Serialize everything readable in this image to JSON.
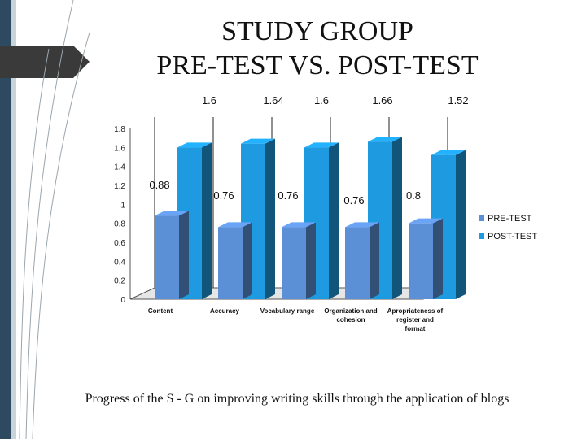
{
  "slide": {
    "title_line1": "STUDY GROUP",
    "title_line2": "PRE-TEST VS. POST-TEST",
    "caption": "Progress of the S - G on improving writing skills  through the application of blogs"
  },
  "chart_data": {
    "type": "bar",
    "title": "",
    "categories": [
      "Content",
      "Accuracy",
      "Vocabulary range",
      "Organization and cohesion",
      "Apropriateness of register and format"
    ],
    "category_lines": [
      [
        "Content"
      ],
      [
        "Accuracy"
      ],
      [
        "Vocabulary range"
      ],
      [
        "Organization and",
        "cohesion"
      ],
      [
        "Apropriateness of",
        "register and",
        "format"
      ]
    ],
    "series": [
      {
        "name": "PRE-TEST",
        "values": [
          0.88,
          0.76,
          0.76,
          0.76,
          0.8
        ],
        "labels": [
          "0.88",
          "0.76",
          "0.76",
          "0.76",
          "0.8"
        ],
        "color": "#5b8fd6"
      },
      {
        "name": "POST-TEST",
        "values": [
          1.6,
          1.64,
          1.6,
          1.66,
          1.52
        ],
        "labels": [
          "1.6",
          "1.64",
          "1.6",
          "1.66",
          "1.52"
        ],
        "color": "#1e9be0"
      }
    ],
    "y_ticks": [
      "0",
      "0.2",
      "0.4",
      "0.6",
      "0.8",
      "1",
      "1.2",
      "1.4",
      "1.6",
      "1.8"
    ],
    "ylim": [
      0,
      1.8
    ],
    "grid": "vertical",
    "legend": "right",
    "style": "3d-clustered"
  }
}
